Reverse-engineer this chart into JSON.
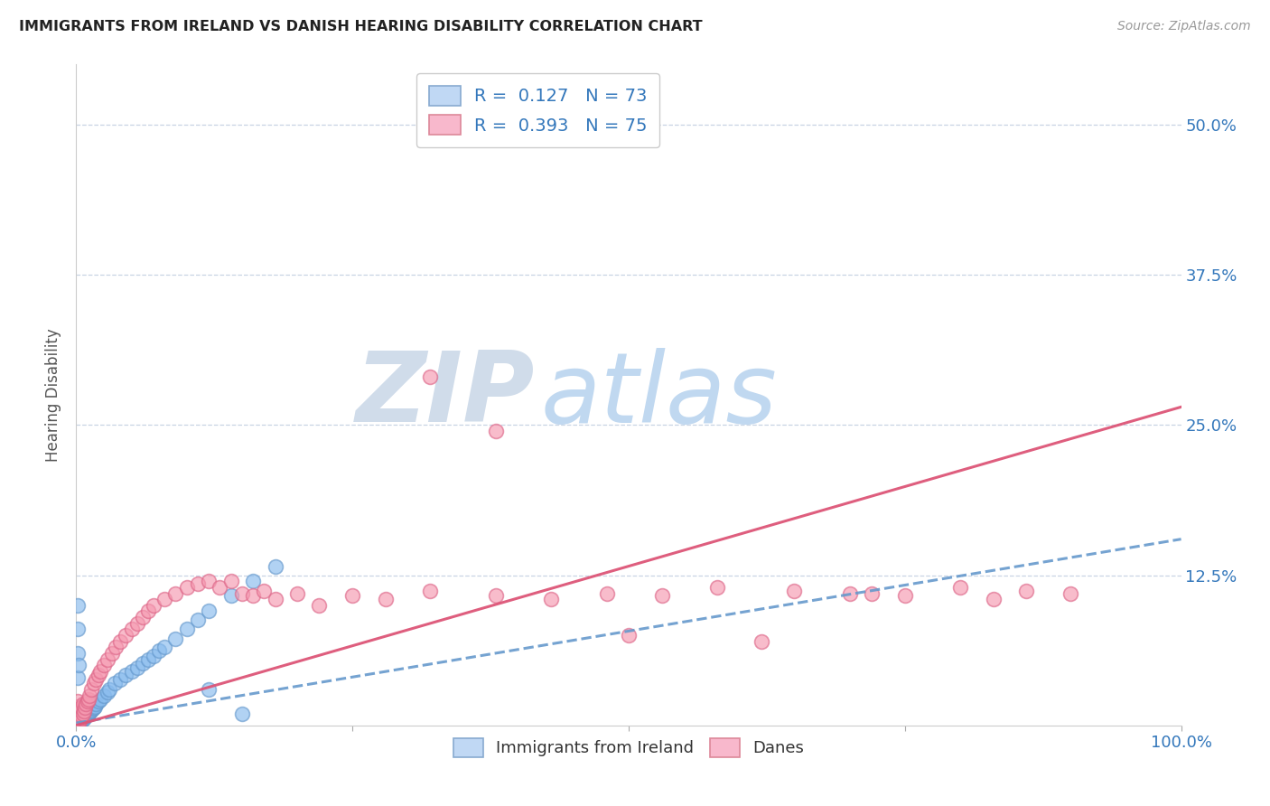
{
  "title": "IMMIGRANTS FROM IRELAND VS DANISH HEARING DISABILITY CORRELATION CHART",
  "source": "Source: ZipAtlas.com",
  "ylabel": "Hearing Disability",
  "ytick_labels": [
    "50.0%",
    "37.5%",
    "25.0%",
    "12.5%"
  ],
  "ytick_values": [
    0.5,
    0.375,
    0.25,
    0.125
  ],
  "xlim": [
    0.0,
    1.0
  ],
  "ylim": [
    0.0,
    0.55
  ],
  "background_color": "#ffffff",
  "grid_color": "#c8d4e4",
  "axis_label_color": "#3377bb",
  "blue_scatter_color": "#88bbee",
  "blue_scatter_edge": "#6699cc",
  "pink_scatter_color": "#f599b0",
  "pink_scatter_edge": "#dd6688",
  "blue_line_color": "#6699cc",
  "pink_line_color": "#dd5577",
  "blue_R": 0.127,
  "blue_N": 73,
  "pink_R": 0.393,
  "pink_N": 75,
  "blue_line_x0": 0.0,
  "blue_line_y0": 0.002,
  "blue_line_x1": 1.0,
  "blue_line_y1": 0.155,
  "pink_line_x0": 0.0,
  "pink_line_y0": 0.0,
  "pink_line_x1": 1.0,
  "pink_line_y1": 0.265,
  "blue_pts_x": [
    0.001,
    0.001,
    0.001,
    0.001,
    0.001,
    0.001,
    0.001,
    0.001,
    0.001,
    0.001,
    0.002,
    0.002,
    0.002,
    0.002,
    0.002,
    0.002,
    0.002,
    0.003,
    0.003,
    0.003,
    0.003,
    0.004,
    0.004,
    0.004,
    0.005,
    0.005,
    0.005,
    0.006,
    0.006,
    0.007,
    0.007,
    0.008,
    0.008,
    0.009,
    0.01,
    0.01,
    0.011,
    0.012,
    0.013,
    0.014,
    0.015,
    0.016,
    0.017,
    0.018,
    0.02,
    0.022,
    0.025,
    0.028,
    0.03,
    0.035,
    0.04,
    0.045,
    0.05,
    0.055,
    0.06,
    0.065,
    0.07,
    0.075,
    0.08,
    0.09,
    0.1,
    0.11,
    0.12,
    0.14,
    0.16,
    0.18,
    0.001,
    0.001,
    0.001,
    0.001,
    0.002,
    0.12,
    0.15
  ],
  "blue_pts_y": [
    0.001,
    0.002,
    0.003,
    0.004,
    0.005,
    0.006,
    0.007,
    0.008,
    0.01,
    0.012,
    0.001,
    0.002,
    0.003,
    0.005,
    0.007,
    0.009,
    0.011,
    0.002,
    0.004,
    0.006,
    0.009,
    0.003,
    0.006,
    0.01,
    0.004,
    0.007,
    0.012,
    0.005,
    0.009,
    0.006,
    0.01,
    0.007,
    0.012,
    0.008,
    0.009,
    0.014,
    0.01,
    0.011,
    0.012,
    0.013,
    0.014,
    0.015,
    0.016,
    0.018,
    0.02,
    0.022,
    0.025,
    0.028,
    0.03,
    0.035,
    0.038,
    0.042,
    0.045,
    0.048,
    0.052,
    0.055,
    0.058,
    0.062,
    0.065,
    0.072,
    0.08,
    0.088,
    0.095,
    0.108,
    0.12,
    0.132,
    0.04,
    0.06,
    0.08,
    0.1,
    0.05,
    0.03,
    0.01
  ],
  "pink_pts_x": [
    0.001,
    0.001,
    0.001,
    0.001,
    0.001,
    0.001,
    0.001,
    0.001,
    0.002,
    0.002,
    0.002,
    0.002,
    0.003,
    0.003,
    0.004,
    0.004,
    0.005,
    0.005,
    0.006,
    0.006,
    0.007,
    0.008,
    0.009,
    0.01,
    0.011,
    0.012,
    0.014,
    0.016,
    0.018,
    0.02,
    0.022,
    0.025,
    0.028,
    0.032,
    0.036,
    0.04,
    0.045,
    0.05,
    0.055,
    0.06,
    0.065,
    0.07,
    0.08,
    0.09,
    0.1,
    0.11,
    0.12,
    0.13,
    0.14,
    0.15,
    0.16,
    0.17,
    0.18,
    0.2,
    0.22,
    0.25,
    0.28,
    0.32,
    0.38,
    0.43,
    0.48,
    0.53,
    0.58,
    0.65,
    0.7,
    0.75,
    0.8,
    0.83,
    0.86,
    0.9,
    0.32,
    0.38,
    0.5,
    0.62,
    0.72
  ],
  "pink_pts_y": [
    0.001,
    0.003,
    0.005,
    0.007,
    0.01,
    0.013,
    0.016,
    0.02,
    0.002,
    0.005,
    0.008,
    0.012,
    0.004,
    0.01,
    0.006,
    0.013,
    0.008,
    0.015,
    0.01,
    0.018,
    0.012,
    0.015,
    0.018,
    0.02,
    0.022,
    0.025,
    0.03,
    0.035,
    0.038,
    0.042,
    0.045,
    0.05,
    0.055,
    0.06,
    0.065,
    0.07,
    0.075,
    0.08,
    0.085,
    0.09,
    0.095,
    0.1,
    0.105,
    0.11,
    0.115,
    0.118,
    0.12,
    0.115,
    0.12,
    0.11,
    0.108,
    0.112,
    0.105,
    0.11,
    0.1,
    0.108,
    0.105,
    0.112,
    0.108,
    0.105,
    0.11,
    0.108,
    0.115,
    0.112,
    0.11,
    0.108,
    0.115,
    0.105,
    0.112,
    0.11,
    0.29,
    0.245,
    0.075,
    0.07,
    0.11
  ]
}
